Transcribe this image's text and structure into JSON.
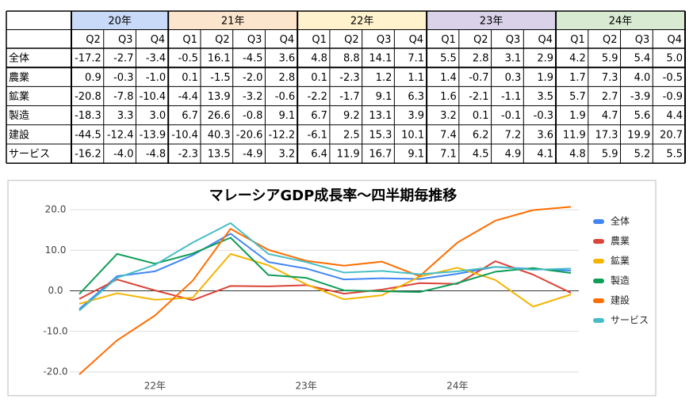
{
  "table": {
    "years": [
      {
        "label": "20年",
        "color": "#c9daf8",
        "quarters": [
          "Q2",
          "Q3",
          "Q4"
        ]
      },
      {
        "label": "21年",
        "color": "#fce5cd",
        "quarters": [
          "Q1",
          "Q2",
          "Q3",
          "Q4"
        ]
      },
      {
        "label": "22年",
        "color": "#fff2cc",
        "quarters": [
          "Q1",
          "Q2",
          "Q3",
          "Q4"
        ]
      },
      {
        "label": "23年",
        "color": "#d9d2e9",
        "quarters": [
          "Q1",
          "Q2",
          "Q3",
          "Q4"
        ]
      },
      {
        "label": "24年",
        "color": "#d9ead3",
        "quarters": [
          "Q1",
          "Q2",
          "Q3",
          "Q4"
        ]
      }
    ],
    "rows": [
      {
        "label": "全体",
        "cells": [
          "-17.2",
          "-2.7",
          "-3.4",
          "-0.5",
          "16.1",
          "-4.5",
          "3.6",
          "4.8",
          "8.8",
          "14.1",
          "7.1",
          "5.5",
          "2.8",
          "3.1",
          "2.9",
          "4.2",
          "5.9",
          "5.4",
          "5.0"
        ]
      },
      {
        "label": "農業",
        "cells": [
          "0.9",
          "-0.3",
          "-1.0",
          "0.1",
          "-1.5",
          "-2.0",
          "2.8",
          "0.1",
          "-2.3",
          "1.2",
          "1.1",
          "1.4",
          "-0.7",
          "0.3",
          "1.9",
          "1.7",
          "7.3",
          "4.0",
          "-0.5"
        ]
      },
      {
        "label": "鉱業",
        "cells": [
          "-20.8",
          "-7.8",
          "-10.4",
          "-4.4",
          "13.9",
          "-3.2",
          "-0.6",
          "-2.2",
          "-1.7",
          "9.1",
          "6.3",
          "1.6",
          "-2.1",
          "-1.1",
          "3.5",
          "5.7",
          "2.7",
          "-3.9",
          "-0.9"
        ]
      },
      {
        "label": "製造",
        "cells": [
          "-18.3",
          "3.3",
          "3.0",
          "6.7",
          "26.6",
          "-0.8",
          "9.1",
          "6.7",
          "9.2",
          "13.1",
          "3.9",
          "3.2",
          "0.1",
          "-0.1",
          "-0.3",
          "1.9",
          "4.7",
          "5.6",
          "4.4"
        ]
      },
      {
        "label": "建設",
        "cells": [
          "-44.5",
          "-12.4",
          "-13.9",
          "-10.4",
          "40.3",
          "-20.6",
          "-12.2",
          "-6.1",
          "2.5",
          "15.3",
          "10.1",
          "7.4",
          "6.2",
          "7.2",
          "3.6",
          "11.9",
          "17.3",
          "19.9",
          "20.7"
        ]
      },
      {
        "label": "サービス",
        "cells": [
          "-16.2",
          "-4.0",
          "-4.8",
          "-2.3",
          "13.5",
          "-4.9",
          "3.2",
          "6.4",
          "11.9",
          "16.7",
          "9.1",
          "7.1",
          "4.5",
          "4.9",
          "4.1",
          "4.8",
          "5.9",
          "5.2",
          "5.5"
        ]
      }
    ]
  },
  "chart_data": {
    "type": "line",
    "title": "マレーシアGDP成長率～四半期毎推移",
    "categories": [
      null,
      null,
      "22年",
      null,
      null,
      null,
      "23年",
      null,
      null,
      null,
      "24年",
      null,
      null,
      null
    ],
    "ylim": [
      -20,
      20
    ],
    "yticks": [
      {
        "value": -20,
        "label": "-20.0"
      },
      {
        "value": -10,
        "label": "-10.0"
      },
      {
        "value": 0,
        "label": "0.0"
      },
      {
        "value": 10,
        "label": "10.0"
      },
      {
        "value": 20,
        "label": "20.0"
      }
    ],
    "grid": true,
    "legend": "right",
    "series": [
      {
        "name": "全体",
        "color": "#4285f4",
        "values": [
          -4.5,
          3.6,
          4.8,
          8.8,
          14.1,
          7.1,
          5.5,
          2.8,
          3.1,
          2.9,
          4.2,
          5.9,
          5.4,
          5.0
        ]
      },
      {
        "name": "農業",
        "color": "#db4437",
        "values": [
          -2.0,
          2.8,
          0.1,
          -2.3,
          1.2,
          1.1,
          1.4,
          -0.7,
          0.3,
          1.9,
          1.7,
          7.3,
          4.0,
          -0.5
        ]
      },
      {
        "name": "鉱業",
        "color": "#f4b400",
        "values": [
          -3.2,
          -0.6,
          -2.2,
          -1.7,
          9.1,
          6.3,
          1.6,
          -2.1,
          -1.1,
          3.5,
          5.7,
          2.7,
          -3.9,
          -0.9
        ]
      },
      {
        "name": "製造",
        "color": "#0f9d58",
        "values": [
          -0.8,
          9.1,
          6.7,
          9.2,
          13.1,
          3.9,
          3.2,
          0.1,
          -0.1,
          -0.3,
          1.9,
          4.7,
          5.6,
          4.4
        ]
      },
      {
        "name": "建設",
        "color": "#ff6d01",
        "values": [
          -20.6,
          -12.2,
          -6.1,
          2.5,
          15.3,
          10.1,
          7.4,
          6.2,
          7.2,
          3.6,
          11.9,
          17.3,
          19.9,
          20.7
        ]
      },
      {
        "name": "サービス",
        "color": "#46bdc6",
        "values": [
          -4.9,
          3.2,
          6.4,
          11.9,
          16.7,
          9.1,
          7.1,
          4.5,
          4.9,
          4.1,
          4.8,
          5.9,
          5.2,
          5.5
        ]
      }
    ]
  }
}
